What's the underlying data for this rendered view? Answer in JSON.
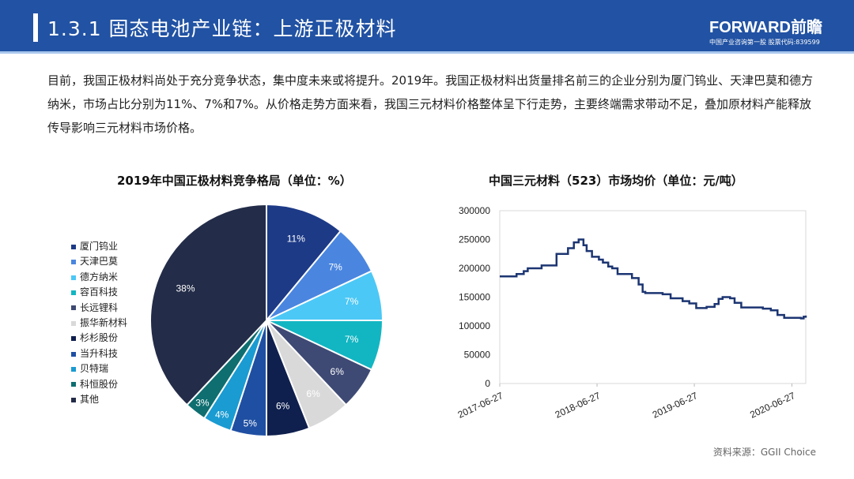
{
  "header": {
    "title": "1.3.1 固态电池产业链：上游正极材料",
    "logo": "FORWARD前瞻",
    "logo_sub": "中国产业咨询第一股 股票代码:839599"
  },
  "paragraph": "目前，我国正极材料尚处于充分竞争状态，集中度未来或将提升。2019年。我国正极材料出货量排名前三的企业分别为厦门钨业、天津巴莫和德方纳米，市场占比分别为11%、7%和7%。从价格走势方面来看，我国三元材料价格整体呈下行走势，主要终端需求带动不足，叠加原材料产能释放传导影响三元材料市场价格。",
  "source": "资料来源：GGII Choice",
  "chart_data": [
    {
      "type": "pie",
      "title": "2019年中国正极材料竞争格局（单位：%）",
      "legend_position": "left",
      "slices": [
        {
          "label": "厦门钨业",
          "value": 11,
          "display": "11%",
          "color": "#1d3a87"
        },
        {
          "label": "天津巴莫",
          "value": 7,
          "display": "7%",
          "color": "#4a86e0"
        },
        {
          "label": "德方纳米",
          "value": 7,
          "display": "7%",
          "color": "#4cc8f6"
        },
        {
          "label": "容百科技",
          "value": 7,
          "display": "7%",
          "color": "#12b6c2"
        },
        {
          "label": "长远锂科",
          "value": 6,
          "display": "6%",
          "color": "#3e4a74"
        },
        {
          "label": "振华新材料",
          "value": 6,
          "display": "6%",
          "color": "#d9d9d9"
        },
        {
          "label": "杉杉股份",
          "value": 6,
          "display": "6%",
          "color": "#0f1f4e"
        },
        {
          "label": "当升科技",
          "value": 5,
          "display": "5%",
          "color": "#1f4fa2"
        },
        {
          "label": "贝特瑞",
          "value": 4,
          "display": "4%",
          "color": "#1a9bd2"
        },
        {
          "label": "科恒股份",
          "value": 3,
          "display": "3%",
          "color": "#0e6e70"
        },
        {
          "label": "其他",
          "value": 38,
          "display": "38%",
          "color": "#232c48"
        }
      ]
    },
    {
      "type": "line",
      "title": "中国三元材料（523）市场均价（单位：元/吨）",
      "ylim": [
        0,
        300000
      ],
      "yticks": [
        "300000",
        "250000",
        "200000",
        "150000",
        "100000",
        "50000",
        "0"
      ],
      "xticks": [
        "2017-06-27",
        "2018-06-27",
        "2019-06-27",
        "2020-06-27"
      ],
      "xlim": [
        "2017-06-27",
        "2020-08-18"
      ],
      "color": "#1c3572",
      "step": true,
      "points": [
        [
          "2017-06-27",
          186000
        ],
        [
          "2017-08-29",
          190000
        ],
        [
          "2017-09-25",
          195000
        ],
        [
          "2017-10-10",
          200000
        ],
        [
          "2017-12-01",
          205000
        ],
        [
          "2018-01-26",
          225000
        ],
        [
          "2018-03-10",
          235000
        ],
        [
          "2018-04-01",
          245000
        ],
        [
          "2018-04-19",
          250000
        ],
        [
          "2018-05-07",
          240000
        ],
        [
          "2018-05-19",
          230000
        ],
        [
          "2018-06-08",
          220000
        ],
        [
          "2018-07-04",
          215000
        ],
        [
          "2018-07-19",
          210000
        ],
        [
          "2018-08-08",
          203000
        ],
        [
          "2018-08-23",
          200000
        ],
        [
          "2018-09-12",
          190000
        ],
        [
          "2018-11-05",
          183000
        ],
        [
          "2018-11-30",
          172000
        ],
        [
          "2018-12-15",
          159000
        ],
        [
          "2018-12-25",
          157000
        ],
        [
          "2019-02-28",
          155000
        ],
        [
          "2019-03-30",
          148000
        ],
        [
          "2019-05-14",
          143000
        ],
        [
          "2019-06-08",
          139000
        ],
        [
          "2019-07-04",
          131000
        ],
        [
          "2019-08-12",
          133000
        ],
        [
          "2019-09-11",
          138000
        ],
        [
          "2019-09-26",
          147000
        ],
        [
          "2019-10-11",
          150000
        ],
        [
          "2019-11-08",
          148000
        ],
        [
          "2019-11-25",
          140000
        ],
        [
          "2019-12-20",
          132000
        ],
        [
          "2020-03-10",
          130000
        ],
        [
          "2020-04-09",
          127000
        ],
        [
          "2020-05-04",
          119000
        ],
        [
          "2020-05-29",
          114000
        ],
        [
          "2020-07-31",
          113000
        ],
        [
          "2020-08-10",
          116000
        ],
        [
          "2020-08-18",
          118000
        ]
      ]
    }
  ]
}
